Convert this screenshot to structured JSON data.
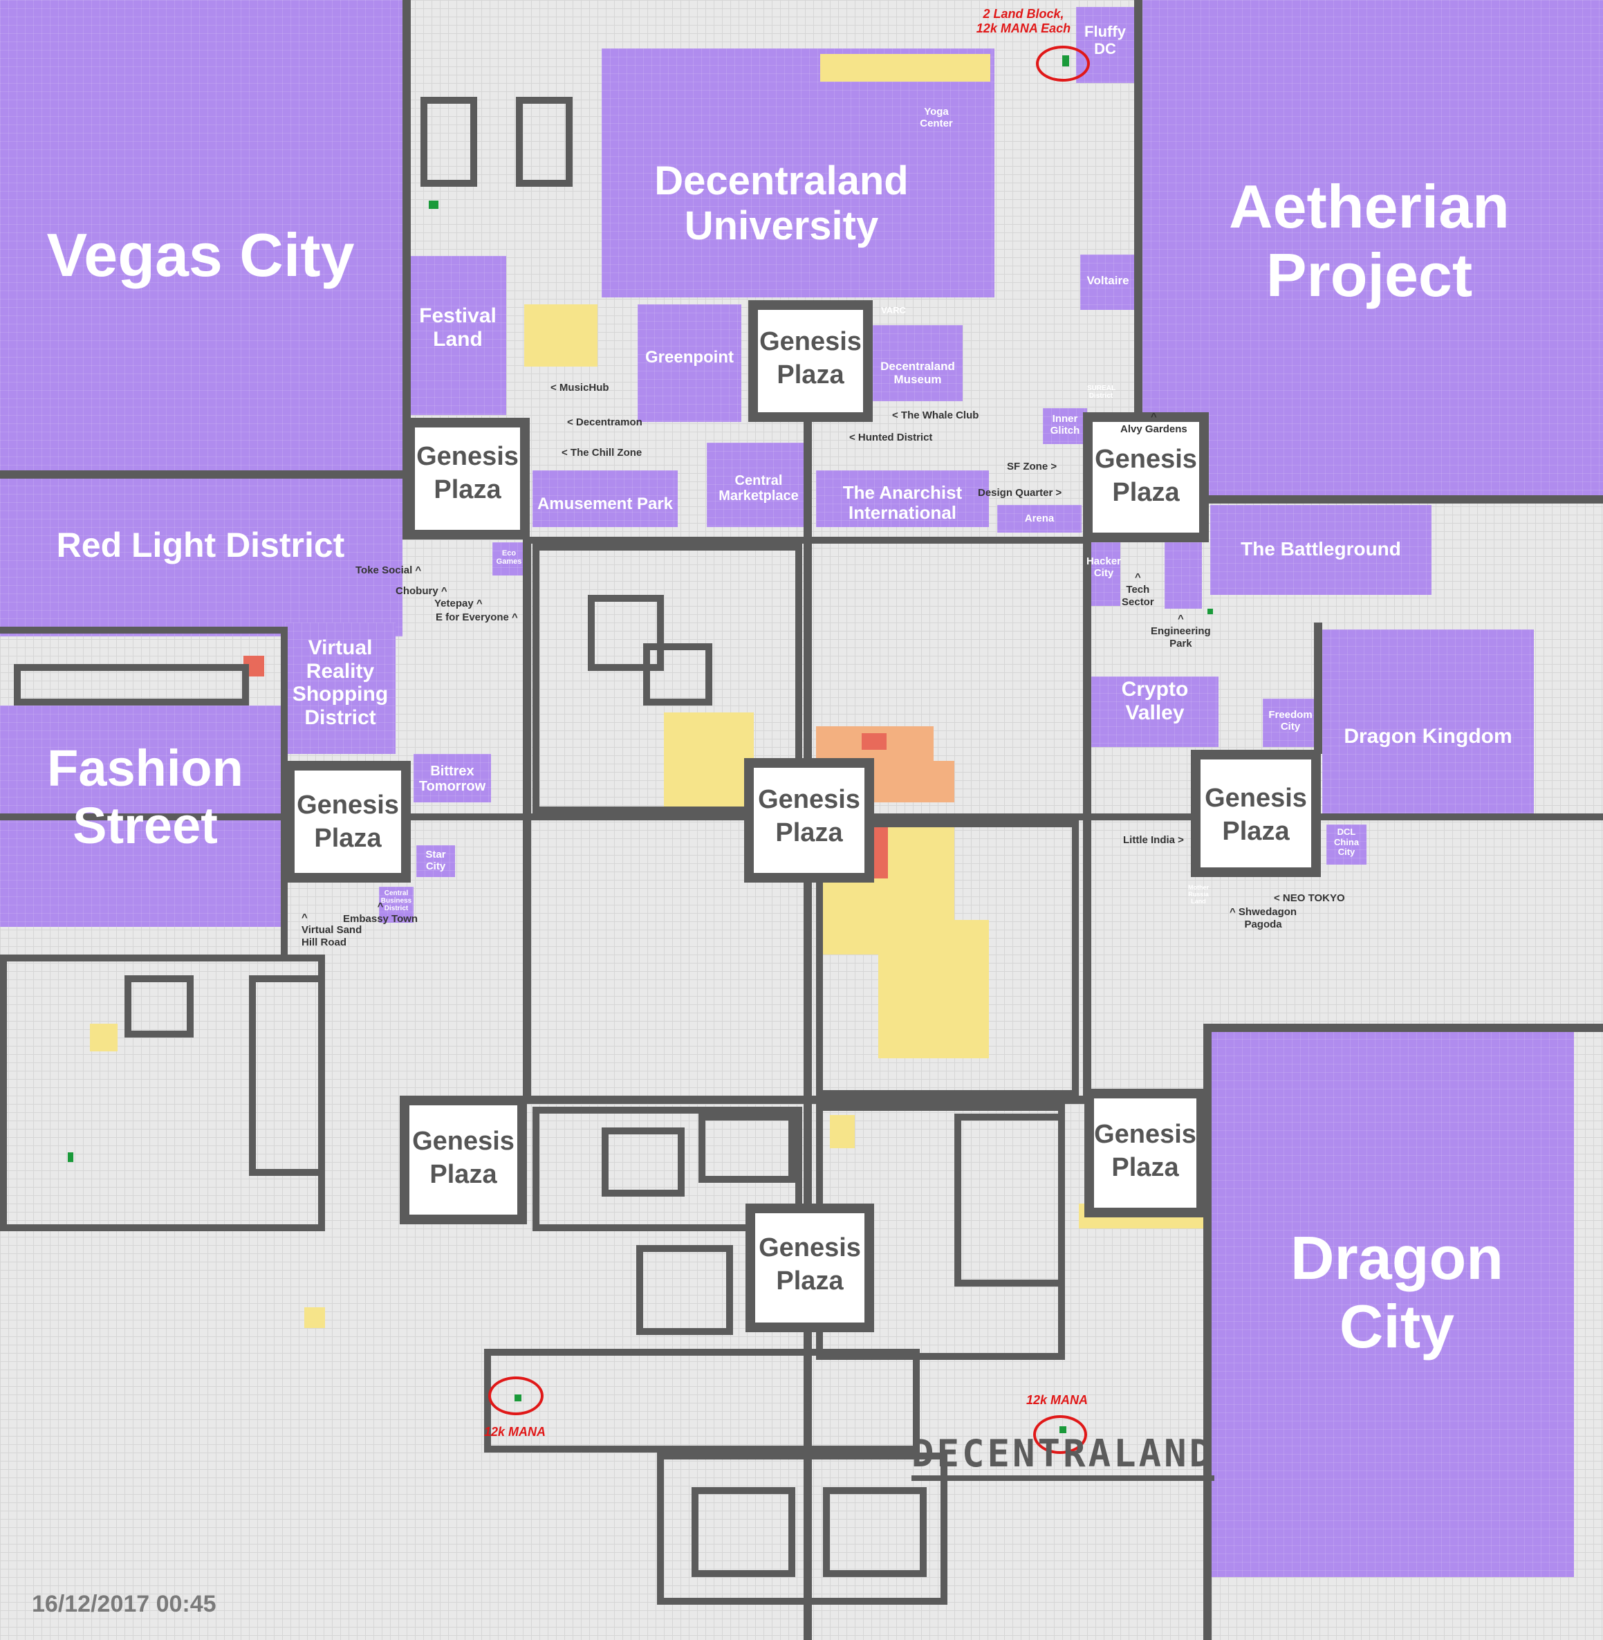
{
  "map": {
    "timestamp": "16/12/2017 00:45",
    "wordmark": "DECENTRALAND",
    "colors": {
      "district": "#b08cee",
      "road": "#5b5b5b",
      "plaza": "#ffffff",
      "empty": "#e9e9e9",
      "owned_low": "#f6e48a",
      "owned_mid": "#f3b080",
      "owned_high": "#e86a5a",
      "for_sale": "#1a9a3a",
      "highlight": "#e01818"
    }
  },
  "plazas": [
    {
      "label": "Genesis Plaza"
    },
    {
      "label": "Genesis Plaza"
    },
    {
      "label": "Genesis Plaza"
    },
    {
      "label": "Genesis Plaza"
    },
    {
      "label": "Genesis Plaza"
    },
    {
      "label": "Genesis Plaza"
    },
    {
      "label": "Genesis Plaza"
    },
    {
      "label": "Genesis Plaza"
    },
    {
      "label": "Genesis Plaza"
    }
  ],
  "districts": {
    "vegas_city": "Vegas City",
    "aetherian": "Aetherian Project",
    "dragon_city": "Dragon City",
    "decentraland_university": "Decentraland University",
    "red_light": "Red Light District",
    "fashion_street": "Fashion Street",
    "festival_land": "Festival Land",
    "greenpoint": "Greenpoint",
    "amusement_park": "Amusement Park",
    "central_marketplace": "Central Marketplace",
    "anarchist": "The Anarchist International",
    "battleground": "The Battleground",
    "crypto_valley": "Crypto Valley",
    "dragon_kingdom": "Dragon Kingdom",
    "vr_shopping": "Virtual Reality Shopping District",
    "bittrex": "Bittrex Tomorrow",
    "fluffy_dc": "Fluffy DC",
    "yoga_center": "Yoga Center",
    "voltaire": "Voltaire",
    "dcl_museum": "Decentraland Museum",
    "varc": "VARC",
    "inner_glitch": "Inner Glitch",
    "sureal": "SUREAL District",
    "arena": "Arena",
    "hacker_city": "Hacker City",
    "freedom_city": "Freedom City",
    "dcl_china": "DCL China City",
    "star_city": "Star City",
    "central_business": "Central Business District",
    "eco_games": "Eco Games",
    "mother_russia": "Mother Russia Land"
  },
  "notes": {
    "musichub": "< MusicHub",
    "decentramon": "< Decentramon",
    "chill_zone": "< The Chill Zone",
    "whale_club": "< The Whale Club",
    "hunted": "< Hunted District",
    "sf_zone": "SF Zone >",
    "design_quarter": "Design Quarter >",
    "alvy": "^\nAlvy Gardens",
    "toke": "Toke Social ^",
    "chobury": "Chobury ^",
    "yetepay": "Yetepay ^",
    "e_for_everyone": "E for Everyone ^",
    "tech_sector": "^\nTech\nSector",
    "engineering": "^\nEngineering\nPark",
    "little_india": "Little India >",
    "neo_tokyo": "< NEO TOKYO",
    "shwedagon": "^ Shwedagon\nPagoda",
    "virtual_sand": "^\nVirtual Sand\nHill Road",
    "embassy": "^\nEmbassy Town"
  },
  "sale_notes": {
    "top": "2 Land Block,\n12k MANA Each",
    "bottom_left": "12k MANA",
    "bottom_right": "12k MANA"
  }
}
